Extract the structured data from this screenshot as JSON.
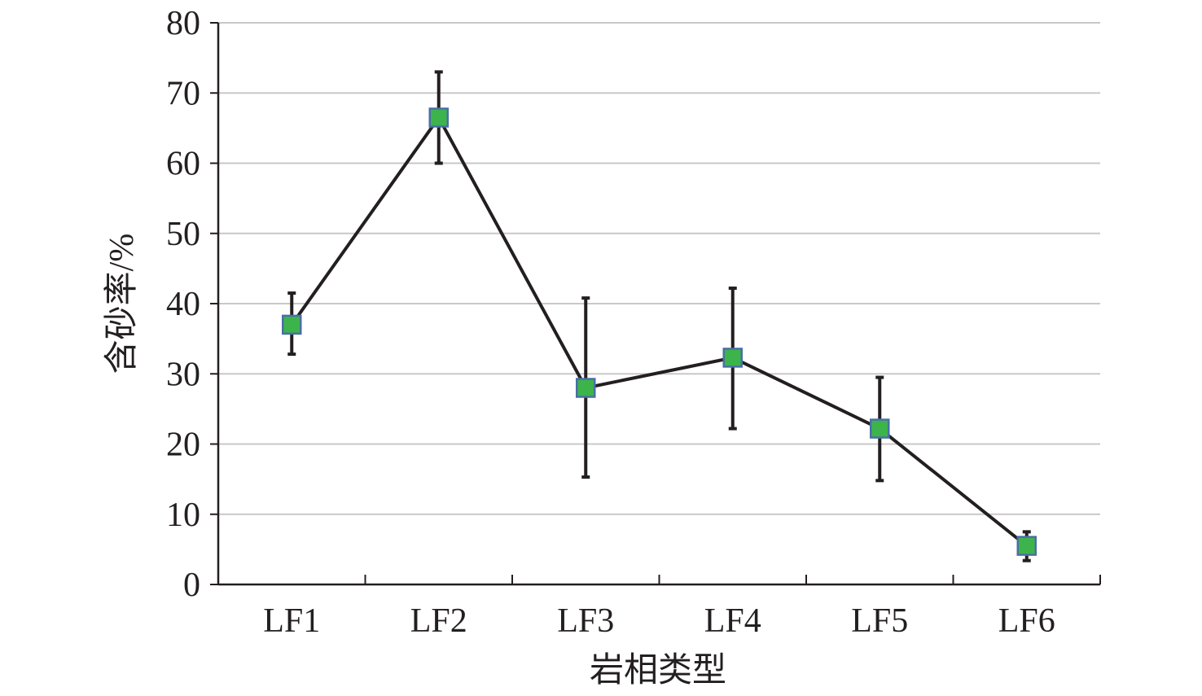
{
  "chart_data": {
    "type": "line",
    "categories": [
      "LF1",
      "LF2",
      "LF3",
      "LF4",
      "LF5",
      "LF6"
    ],
    "series": [
      {
        "values": [
          37.0,
          66.5,
          28.0,
          32.3,
          22.2,
          5.5
        ],
        "error_low": [
          32.8,
          60.0,
          15.3,
          22.2,
          14.8,
          3.4
        ],
        "error_high": [
          41.5,
          73.0,
          40.8,
          42.2,
          29.5,
          7.5
        ]
      }
    ],
    "xlabel": "岩相类型",
    "ylabel": "含砂率/%",
    "ylim": [
      0,
      80
    ],
    "yticks": [
      "0",
      "10",
      "20",
      "30",
      "40",
      "50",
      "60",
      "70",
      "80"
    ],
    "grid": true,
    "legend": "none",
    "colors": {
      "line": "#231f20",
      "marker_fill": "#3cb44b",
      "marker_edge": "#4a6fa5",
      "grid": "#c8c8c8",
      "axis": "#231f20"
    }
  }
}
